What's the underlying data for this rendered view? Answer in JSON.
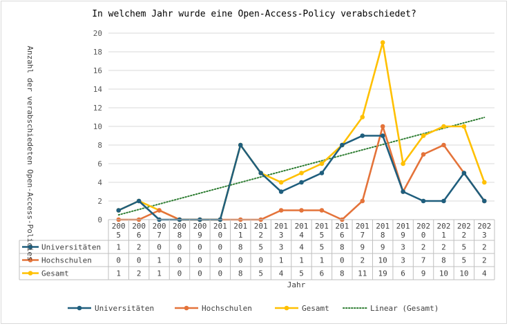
{
  "chart_data": {
    "type": "line",
    "title": "In welchem Jahr wurde eine Open-Access-Policy verabschiedet?",
    "xlabel": "Jahr",
    "ylabel": "Anzahl der verabschiedeten Open-Access-Policies",
    "ylim": [
      0,
      20
    ],
    "yticks": [
      "0",
      "2",
      "4",
      "6",
      "8",
      "10",
      "12",
      "14",
      "16",
      "18",
      "20"
    ],
    "grid": true,
    "legend_position": "bottom",
    "categories": [
      "2005",
      "2006",
      "2007",
      "2008",
      "2009",
      "2010",
      "2011",
      "2012",
      "2013",
      "2014",
      "2015",
      "2016",
      "2017",
      "2018",
      "2019",
      "2020",
      "2021",
      "2022",
      "2023"
    ],
    "series": [
      {
        "name": "Universitäten",
        "color": "#1f5e7d",
        "values": [
          1,
          2,
          0,
          0,
          0,
          0,
          8,
          5,
          3,
          4,
          5,
          8,
          9,
          9,
          3,
          2,
          2,
          5,
          2
        ]
      },
      {
        "name": "Hochschulen",
        "color": "#e4733a",
        "values": [
          0,
          0,
          1,
          0,
          0,
          0,
          0,
          0,
          1,
          1,
          1,
          0,
          2,
          10,
          3,
          7,
          8,
          5,
          2
        ]
      },
      {
        "name": "Gesamt",
        "color": "#ffc000",
        "values": [
          1,
          2,
          1,
          0,
          0,
          0,
          8,
          5,
          4,
          5,
          6,
          8,
          11,
          19,
          6,
          9,
          10,
          10,
          4
        ]
      }
    ],
    "trendline": {
      "name": "Linear (Gesamt)",
      "color": "#2e7d32",
      "style": "dotted",
      "of_series": "Gesamt"
    }
  }
}
